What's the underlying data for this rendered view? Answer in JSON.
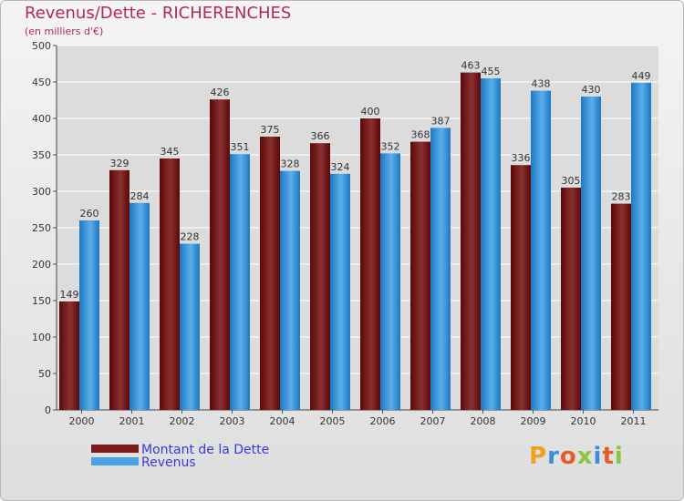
{
  "header": {
    "title": "Revenus/Dette - RICHERENCHES",
    "subtitle": "(en milliers d'€)"
  },
  "chart_data": {
    "type": "bar",
    "title": "Revenus/Dette - RICHERENCHES",
    "ylabel": "(en milliers d'€)",
    "categories": [
      "2000",
      "2001",
      "2002",
      "2003",
      "2004",
      "2005",
      "2006",
      "2007",
      "2008",
      "2009",
      "2010",
      "2011"
    ],
    "series": [
      {
        "name": "Montant de la Dette",
        "color": "#7a1a1a",
        "values": [
          149,
          329,
          345,
          426,
          375,
          366,
          400,
          368,
          463,
          336,
          305,
          283
        ]
      },
      {
        "name": "Revenus",
        "color": "#4aa3e2",
        "values": [
          260,
          284,
          228,
          351,
          328,
          324,
          352,
          387,
          455,
          438,
          430,
          449
        ]
      }
    ],
    "ylim": [
      0,
      500
    ],
    "yticks": [
      0,
      50,
      100,
      150,
      200,
      250,
      300,
      350,
      400,
      450,
      500
    ],
    "grid": true,
    "legend_position": "bottom-left"
  },
  "legend": {
    "items": [
      "Montant de la Dette",
      "Revenus"
    ],
    "text_color": "#3a3ad6"
  },
  "logo": {
    "letters": [
      "P",
      "r",
      "o",
      "x",
      "i",
      "t",
      "i"
    ],
    "colors": [
      "#f0a020",
      "#3a8fd8",
      "#e85a2a",
      "#8cc63f",
      "#3a8fd8",
      "#e85a2a",
      "#8cc63f"
    ]
  }
}
